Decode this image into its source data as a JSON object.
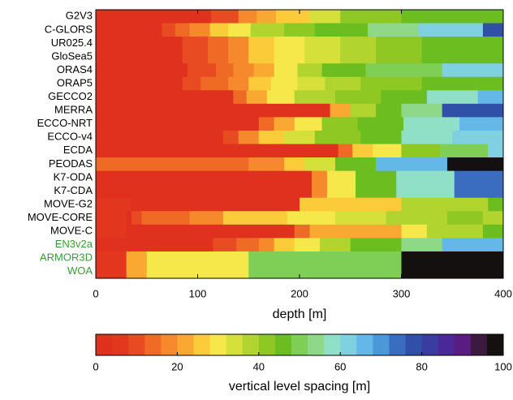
{
  "chart_data": {
    "type": "level-spacing",
    "xlabel": "depth [m]",
    "xlim": [
      0,
      400
    ],
    "xticks": [
      0,
      100,
      200,
      300,
      400
    ],
    "rows": [
      {
        "name": "G2V3",
        "color": "#000000",
        "edges": [
          0,
          113,
          140,
          158,
          177,
          210,
          240,
          300,
          400
        ],
        "values": [
          2,
          10,
          16,
          22,
          26,
          32,
          40,
          46
        ]
      },
      {
        "name": "C-GLORS",
        "color": "#000000",
        "edges": [
          0,
          65,
          78,
          92,
          112,
          130,
          152,
          185,
          215,
          267,
          317,
          380,
          400
        ],
        "values": [
          2,
          10,
          14,
          18,
          24,
          30,
          36,
          42,
          46,
          54,
          62,
          76
        ]
      },
      {
        "name": "UR025.4",
        "color": "#000000",
        "edges": [
          0,
          85,
          110,
          130,
          150,
          175,
          205,
          240,
          275,
          320,
          400
        ],
        "values": [
          2,
          8,
          14,
          18,
          24,
          28,
          32,
          38,
          42,
          46
        ]
      },
      {
        "name": "GloSea5",
        "color": "#000000",
        "edges": [
          0,
          85,
          110,
          130,
          150,
          175,
          205,
          240,
          275,
          320,
          400
        ],
        "values": [
          2,
          8,
          14,
          18,
          24,
          28,
          32,
          38,
          42,
          46
        ]
      },
      {
        "name": "ORAS4",
        "color": "#000000",
        "edges": [
          0,
          90,
          118,
          135,
          155,
          175,
          198,
          222,
          265,
          340,
          400
        ],
        "values": [
          2,
          10,
          14,
          18,
          22,
          28,
          36,
          44,
          50,
          62
        ]
      },
      {
        "name": "ORAP5",
        "color": "#000000",
        "edges": [
          0,
          85,
          103,
          130,
          150,
          172,
          198,
          225,
          260,
          320,
          400
        ],
        "values": [
          2,
          8,
          14,
          18,
          24,
          28,
          34,
          38,
          42,
          46
        ]
      },
      {
        "name": "GECCO2",
        "color": "#000000",
        "edges": [
          0,
          135,
          148,
          168,
          195,
          235,
          280,
          325,
          375,
          400
        ],
        "values": [
          2,
          12,
          20,
          28,
          36,
          42,
          46,
          56,
          64
        ]
      },
      {
        "name": "MERRA",
        "color": "#000000",
        "edges": [
          0,
          230,
          250,
          275,
          300,
          340,
          400
        ],
        "values": [
          2,
          20,
          36,
          44,
          54,
          78
        ]
      },
      {
        "name": "ECCO-NRT",
        "color": "#000000",
        "edges": [
          0,
          160,
          175,
          195,
          222,
          257,
          302,
          357,
          400
        ],
        "values": [
          2,
          14,
          22,
          30,
          40,
          46,
          58,
          64
        ]
      },
      {
        "name": "ECCO-v4",
        "color": "#000000",
        "edges": [
          0,
          125,
          140,
          160,
          185,
          215,
          260,
          300,
          350,
          400
        ],
        "values": [
          2,
          10,
          16,
          26,
          32,
          40,
          46,
          56,
          62
        ]
      },
      {
        "name": "ECDA",
        "color": "#000000",
        "edges": [
          0,
          238,
          252,
          272,
          300,
          338,
          385,
          400
        ],
        "values": [
          2,
          14,
          24,
          30,
          42,
          48,
          60
        ]
      },
      {
        "name": "PEODAS",
        "color": "#000000",
        "edges": [
          0,
          150,
          185,
          205,
          235,
          275,
          345,
          400
        ],
        "values": [
          12,
          18,
          26,
          34,
          44,
          66,
          98
        ]
      },
      {
        "name": "K7-ODA",
        "color": "#000000",
        "edges": [
          0,
          212,
          227,
          255,
          295,
          352,
          400
        ],
        "values": [
          2,
          16,
          30,
          44,
          58,
          74
        ]
      },
      {
        "name": "K7-CDA",
        "color": "#000000",
        "edges": [
          0,
          212,
          227,
          255,
          295,
          352,
          400
        ],
        "values": [
          2,
          16,
          30,
          44,
          58,
          74
        ]
      },
      {
        "name": "MOVE-G2",
        "color": "#000000",
        "edges": [
          0,
          35,
          200,
          300,
          385,
          400
        ],
        "values": [
          4,
          2,
          24,
          36,
          44
        ]
      },
      {
        "name": "MOVE-CORE",
        "color": "#000000",
        "edges": [
          0,
          30,
          35,
          45,
          92,
          125,
          188,
          235,
          285,
          345,
          380,
          400
        ],
        "values": [
          4,
          2,
          8,
          14,
          18,
          24,
          28,
          32,
          36,
          42,
          38
        ]
      },
      {
        "name": "MOVE-C",
        "color": "#000000",
        "edges": [
          0,
          30,
          195,
          210,
          300,
          325,
          380,
          400
        ],
        "values": [
          4,
          2,
          12,
          22,
          30,
          36,
          44
        ]
      },
      {
        "name": "EN3v2a",
        "color": "#3a9a3a",
        "edges": [
          0,
          115,
          138,
          160,
          175,
          195,
          220,
          250,
          300,
          340,
          400
        ],
        "values": [
          2,
          10,
          14,
          18,
          24,
          30,
          36,
          44,
          52,
          64
        ]
      },
      {
        "name": "ARMOR3D",
        "color": "#3a9a3a",
        "edges": [
          0,
          30,
          50,
          150,
          300,
          400
        ],
        "values": [
          4,
          22,
          30,
          50,
          100
        ]
      },
      {
        "name": "WOA",
        "color": "#3a9a3a",
        "edges": [
          0,
          30,
          50,
          150,
          300,
          400
        ],
        "values": [
          4,
          22,
          30,
          50,
          100
        ]
      }
    ],
    "colorbar": {
      "label": "vertical level spacing [m]",
      "xlim": [
        0,
        100
      ],
      "xticks": [
        0,
        20,
        40,
        60,
        80,
        100
      ],
      "colormap": [
        "#e0301e",
        "#e2361f",
        "#e84a22",
        "#ef6a25",
        "#f5892b",
        "#f9a932",
        "#fbcb3a",
        "#f6e84a",
        "#d6e03a",
        "#b2d42e",
        "#8fc823",
        "#6cbd1f",
        "#7fcf56",
        "#8fd88a",
        "#90e0c8",
        "#7fd0e0",
        "#63b8e8",
        "#4a98d8",
        "#3a6cc0",
        "#3050a8",
        "#3a3ca0",
        "#4a2898",
        "#5a1c80",
        "#3c1a40",
        "#141010"
      ]
    }
  }
}
